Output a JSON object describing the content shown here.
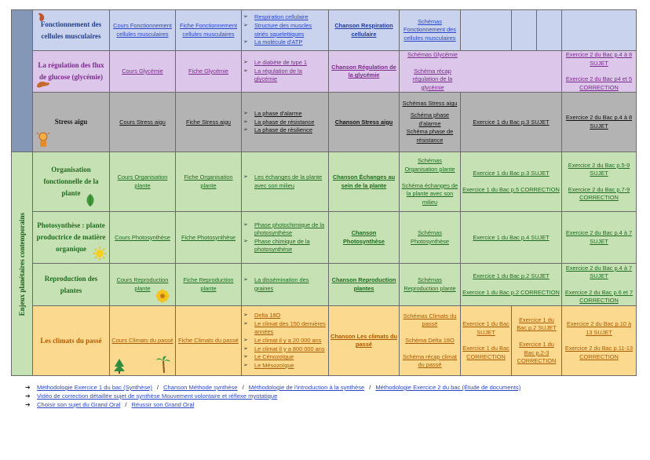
{
  "theme_vertical": "Enjeux planétaires contemporains",
  "rows": {
    "fonctionnement": {
      "title": "Fonctionnement des cellules musculaires",
      "cours": "Cours Fonctionnement cellules musculaires",
      "fiche": "Fiche Fonctionnement cellules musculaires",
      "videos": [
        "Respiration cellulaire",
        "Structure des muscles striés squelettiques",
        "La molécule d'ATP"
      ],
      "chanson": "Chanson Respiration cellulaire",
      "schemas": "Schémas Fonctionnement des cellules musculaires"
    },
    "glycemie": {
      "title": "La régulation des flux de glucose (glycémie)",
      "cours": "Cours Glycémie",
      "fiche": "Fiche Glycémie",
      "videos": [
        "Le diabète de type 1",
        "La régulation de la glycémie"
      ],
      "chanson": "Chanson Régulation de la glycémie",
      "schemas": [
        "Schémas Glycémie",
        "Schéma récap régulation de la glycémie"
      ],
      "ex2": [
        "Exercice 2 du Bac p.4 à 8 SUJET",
        "Exercice 2 du Bac p4 et 5 CORRECTION"
      ]
    },
    "stress": {
      "title": "Stress aigu",
      "cours": "Cours Stress aigu",
      "fiche": "Fiche Stress aigu",
      "videos": [
        "La phase d'alarme",
        "La phase de résistance",
        "La phase de résilience"
      ],
      "chanson": "Chanson Stress aigu",
      "schemas": [
        "Schémas Stress aigu",
        "Schéma phase d'alarme",
        "Schéma phase de résistance"
      ],
      "ex1": [
        "Exercice 1 du Bac p.3 SUJET"
      ],
      "ex2": [
        "Exercice 2 du Bac p.4 à 8 SUJET"
      ]
    },
    "organisation": {
      "title": "Organisation fonctionnelle de la plante",
      "cours": "Cours Organisation plante",
      "fiche": "Fiche Organisation plante",
      "videos": [
        "Les échanges de la plante avec son milieu"
      ],
      "chanson": "Chanson Échanges au sein de la plante",
      "schemas": [
        "Schémas Organisation plante",
        "Schéma échanges de la plante avec son milieu"
      ],
      "ex1": [
        "Exercice 1 du Bac p.3 SUJET",
        "Exercice 1 du Bac p.5 CORRECTION"
      ],
      "ex2": [
        "Exercice 2 du Bac p.5-9 SUJET",
        "Exercice 2 du Bac p.7-9 CORRECTION"
      ]
    },
    "photosynthese": {
      "title": "Photosynthèse : plante productrice de matière organique",
      "cours": "Cours Photosynthèse",
      "fiche": "Fiche Photosynthèse",
      "videos": [
        "Phase photochimique de la photosynthèse",
        "Phase chimique de la photosynthèse"
      ],
      "chanson": "Chanson Photosynthèse",
      "schemas": "Schémas Photosynthèse",
      "ex1": [
        "Exercice 1 du Bac p.4 SUJET"
      ],
      "ex2": [
        "Exercice 2 du Bac p.4 à 7 SUJET"
      ]
    },
    "reproduction": {
      "title": "Reproduction des plantes",
      "cours": "Cours Reproduction plante",
      "fiche": "Fiche Reproduction plante",
      "videos": [
        "La dissémination des graines"
      ],
      "chanson": "Chanson Reproduction plantes",
      "schemas": "Schémas Reproduction plante",
      "ex1": [
        "Exercice 1 du Bac p.2 SUJET",
        "Exercice 1 du Bac p.2 CORRECTION"
      ],
      "ex2": [
        "Exercice 2 du Bac p.4 à 7 SUJET",
        "Exercice 2 du Bac p.6 et 7 CORRECTION"
      ]
    },
    "climats": {
      "title": "Les climats du passé",
      "cours": "Cours Climats du passé",
      "fiche": "Fiche Climats du passé",
      "videos": [
        "Delta 18O",
        "Le climat des 150 dernières années",
        "Le climat il y a 20 000 ans",
        "Le climat il y a 800 000 ans",
        "Le Cénozoïque",
        "Le Mésozoïque"
      ],
      "chanson": "Chanson Les climats du passé",
      "schemas": [
        "Schémas Climats du passé",
        "Schéma Delta 18O",
        "Schéma récap climat du passé"
      ],
      "ex1a": [
        "Exercice 1 du Bac SUJET",
        "Exercice 1 du Bac CORRECTION"
      ],
      "ex1b": [
        "Exercice 1 du Bac p.2 SUJET",
        "Exercice 1 du Bac p.2-3 CORRECTION"
      ],
      "ex2": [
        "Exercice 2 du Bac p.10 à 13 SUJET",
        "Exercice 2 du Bac p.11-13 CORRECTION"
      ]
    }
  },
  "footer": {
    "line1": [
      "Méthodologie Exercice 1 du bac (Synthèse)",
      "Chanson Méthode synthèse",
      "Méthodologie de l'introduction à la synthèse",
      "Méthodologie Exercice 2 du bac (Étude de documents)"
    ],
    "separator": "/",
    "line2": "Vidéo de correction détaillée sujet de synthèse Mouvement volontaire et réflexe myotatique",
    "line3": [
      "Choisir son sujet du Grand Oral",
      "Réussir son Grand Oral"
    ]
  },
  "colors": {
    "blue_row": "#c9d3ee",
    "purple_row": "#dcc7ea",
    "grey_row": "#b3b3b3",
    "green_row": "#c6e2b4",
    "orange_row": "#fbd98e",
    "theme_left_top": "#8597b6",
    "theme_left_bottom": "#c6e2b4"
  },
  "icons": [
    "muscle-icon",
    "pancreas-icon",
    "stressed-person-icon",
    "leaf-icon",
    "sun-icon",
    "flower-icon",
    "pine-tree-icon",
    "palm-tree-icon"
  ]
}
